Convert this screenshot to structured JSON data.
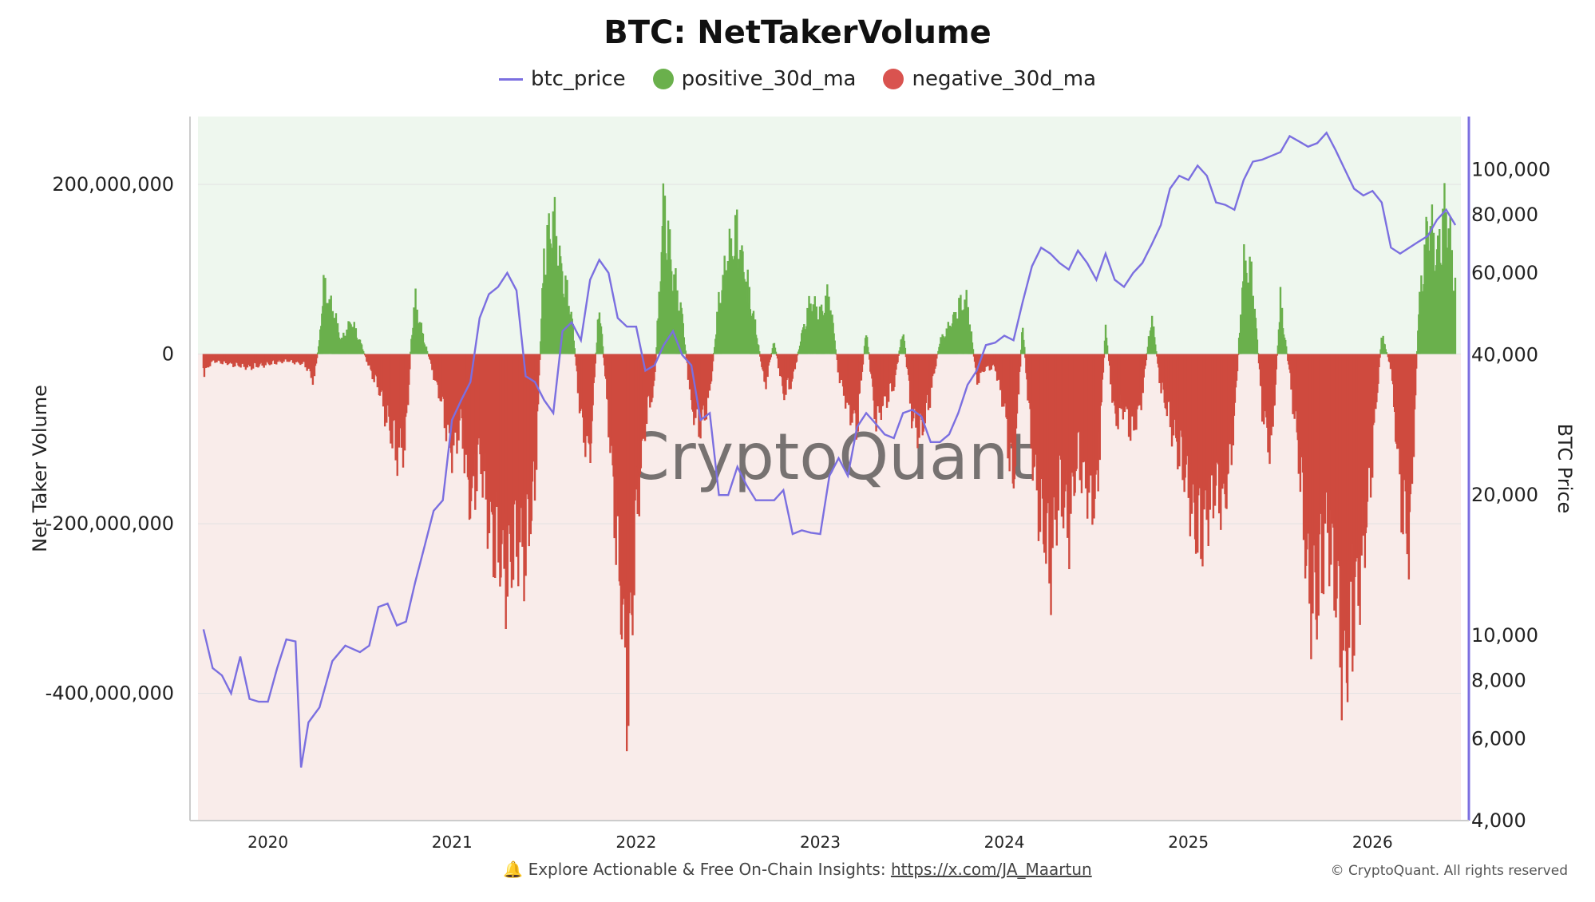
{
  "chart_data": {
    "type": "bar+line",
    "title": "BTC: NetTakerVolume",
    "legend": [
      {
        "name": "btc_price",
        "kind": "line",
        "color": "#7b6fe0"
      },
      {
        "name": "positive_30d_ma",
        "kind": "dot",
        "color": "#6ab04c"
      },
      {
        "name": "negative_30d_ma",
        "kind": "dot",
        "color": "#d9534f"
      }
    ],
    "legend_position": "top-center",
    "ylabel_left": "Net Taker Volume",
    "ylabel_right": "BTC Price",
    "y_left_ticks": [
      "200,000,000",
      "0",
      "-200,000,000",
      "-400,000,000"
    ],
    "y_left_tick_values": [
      200000000,
      0,
      -200000000,
      -400000000
    ],
    "y_left_range": [
      -550000000,
      280000000
    ],
    "y_right_ticks": [
      "100,000",
      "80,000",
      "60,000",
      "40,000",
      "20,000",
      "10,000",
      "8,000",
      "6,000",
      "4,000"
    ],
    "y_right_tick_values": [
      100000,
      80000,
      60000,
      40000,
      20000,
      10000,
      8000,
      6000,
      4000
    ],
    "y_right_scale": "log",
    "y_right_range": [
      4000,
      130000
    ],
    "x_ticks": [
      "2020",
      "2021",
      "2022",
      "2023",
      "2024",
      "2025",
      "2026"
    ],
    "x_tick_values": [
      2020,
      2021,
      2022,
      2023,
      2024,
      2025,
      2026
    ],
    "x_range": [
      2019.62,
      2026.48
    ],
    "watermark": "CryptoQuant",
    "net_taker_volume_30d_ma": [
      [
        2019.65,
        -30000000
      ],
      [
        2019.7,
        -10000000
      ],
      [
        2019.8,
        -15000000
      ],
      [
        2019.9,
        -20000000
      ],
      [
        2020.0,
        -15000000
      ],
      [
        2020.1,
        -10000000
      ],
      [
        2020.2,
        -15000000
      ],
      [
        2020.25,
        -40000000
      ],
      [
        2020.28,
        20000000
      ],
      [
        2020.3,
        100000000
      ],
      [
        2020.35,
        70000000
      ],
      [
        2020.4,
        20000000
      ],
      [
        2020.45,
        50000000
      ],
      [
        2020.5,
        20000000
      ],
      [
        2020.55,
        -20000000
      ],
      [
        2020.6,
        -50000000
      ],
      [
        2020.65,
        -100000000
      ],
      [
        2020.7,
        -150000000
      ],
      [
        2020.75,
        -130000000
      ],
      [
        2020.78,
        30000000
      ],
      [
        2020.8,
        80000000
      ],
      [
        2020.85,
        20000000
      ],
      [
        2020.9,
        -30000000
      ],
      [
        2020.95,
        -80000000
      ],
      [
        2021.0,
        -150000000
      ],
      [
        2021.05,
        -100000000
      ],
      [
        2021.1,
        -230000000
      ],
      [
        2021.15,
        -150000000
      ],
      [
        2021.2,
        -250000000
      ],
      [
        2021.25,
        -300000000
      ],
      [
        2021.3,
        -330000000
      ],
      [
        2021.35,
        -280000000
      ],
      [
        2021.4,
        -300000000
      ],
      [
        2021.45,
        -200000000
      ],
      [
        2021.5,
        150000000
      ],
      [
        2021.55,
        200000000
      ],
      [
        2021.6,
        120000000
      ],
      [
        2021.65,
        60000000
      ],
      [
        2021.7,
        -100000000
      ],
      [
        2021.75,
        -150000000
      ],
      [
        2021.8,
        80000000
      ],
      [
        2021.85,
        -100000000
      ],
      [
        2021.9,
        -300000000
      ],
      [
        2021.93,
        -420000000
      ],
      [
        2021.96,
        -500000000
      ],
      [
        2022.0,
        -250000000
      ],
      [
        2022.05,
        -100000000
      ],
      [
        2022.1,
        -50000000
      ],
      [
        2022.15,
        230000000
      ],
      [
        2022.2,
        120000000
      ],
      [
        2022.25,
        60000000
      ],
      [
        2022.3,
        -80000000
      ],
      [
        2022.35,
        -110000000
      ],
      [
        2022.4,
        -60000000
      ],
      [
        2022.45,
        80000000
      ],
      [
        2022.5,
        150000000
      ],
      [
        2022.55,
        180000000
      ],
      [
        2022.6,
        110000000
      ],
      [
        2022.65,
        40000000
      ],
      [
        2022.7,
        -50000000
      ],
      [
        2022.75,
        20000000
      ],
      [
        2022.8,
        -60000000
      ],
      [
        2022.85,
        -40000000
      ],
      [
        2022.9,
        30000000
      ],
      [
        2022.95,
        80000000
      ],
      [
        2023.0,
        60000000
      ],
      [
        2023.05,
        90000000
      ],
      [
        2023.1,
        -30000000
      ],
      [
        2023.15,
        -80000000
      ],
      [
        2023.2,
        -110000000
      ],
      [
        2023.25,
        40000000
      ],
      [
        2023.3,
        -100000000
      ],
      [
        2023.35,
        -70000000
      ],
      [
        2023.4,
        -50000000
      ],
      [
        2023.45,
        40000000
      ],
      [
        2023.5,
        -100000000
      ],
      [
        2023.55,
        -120000000
      ],
      [
        2023.6,
        -60000000
      ],
      [
        2023.65,
        20000000
      ],
      [
        2023.7,
        40000000
      ],
      [
        2023.75,
        70000000
      ],
      [
        2023.8,
        80000000
      ],
      [
        2023.85,
        -40000000
      ],
      [
        2023.9,
        -20000000
      ],
      [
        2023.95,
        -20000000
      ],
      [
        2024.0,
        -80000000
      ],
      [
        2024.05,
        -200000000
      ],
      [
        2024.1,
        50000000
      ],
      [
        2024.15,
        -150000000
      ],
      [
        2024.2,
        -250000000
      ],
      [
        2024.25,
        -320000000
      ],
      [
        2024.3,
        -200000000
      ],
      [
        2024.35,
        -260000000
      ],
      [
        2024.4,
        -150000000
      ],
      [
        2024.45,
        -200000000
      ],
      [
        2024.5,
        -230000000
      ],
      [
        2024.55,
        40000000
      ],
      [
        2024.6,
        -100000000
      ],
      [
        2024.65,
        -80000000
      ],
      [
        2024.7,
        -120000000
      ],
      [
        2024.75,
        -60000000
      ],
      [
        2024.8,
        60000000
      ],
      [
        2024.85,
        -50000000
      ],
      [
        2024.9,
        -100000000
      ],
      [
        2024.95,
        -150000000
      ],
      [
        2025.0,
        -200000000
      ],
      [
        2025.05,
        -280000000
      ],
      [
        2025.1,
        -240000000
      ],
      [
        2025.15,
        -200000000
      ],
      [
        2025.2,
        -220000000
      ],
      [
        2025.25,
        -100000000
      ],
      [
        2025.3,
        140000000
      ],
      [
        2025.35,
        110000000
      ],
      [
        2025.4,
        -80000000
      ],
      [
        2025.45,
        -150000000
      ],
      [
        2025.5,
        80000000
      ],
      [
        2025.55,
        -30000000
      ],
      [
        2025.6,
        -150000000
      ],
      [
        2025.65,
        -350000000
      ],
      [
        2025.7,
        -380000000
      ],
      [
        2025.75,
        -250000000
      ],
      [
        2025.8,
        -350000000
      ],
      [
        2025.85,
        -480000000
      ],
      [
        2025.9,
        -380000000
      ],
      [
        2025.95,
        -300000000
      ],
      [
        2026.0,
        -150000000
      ],
      [
        2026.05,
        30000000
      ],
      [
        2026.1,
        -20000000
      ],
      [
        2026.15,
        -200000000
      ],
      [
        2026.2,
        -300000000
      ],
      [
        2026.25,
        60000000
      ],
      [
        2026.3,
        200000000
      ],
      [
        2026.35,
        150000000
      ],
      [
        2026.4,
        220000000
      ],
      [
        2026.45,
        100000000
      ]
    ],
    "btc_price": [
      [
        2019.65,
        10300
      ],
      [
        2019.7,
        8500
      ],
      [
        2019.75,
        8200
      ],
      [
        2019.8,
        7500
      ],
      [
        2019.85,
        9000
      ],
      [
        2019.9,
        7300
      ],
      [
        2019.95,
        7200
      ],
      [
        2020.0,
        7200
      ],
      [
        2020.05,
        8500
      ],
      [
        2020.1,
        9800
      ],
      [
        2020.15,
        9700
      ],
      [
        2020.18,
        5200
      ],
      [
        2020.22,
        6500
      ],
      [
        2020.28,
        7000
      ],
      [
        2020.35,
        8800
      ],
      [
        2020.42,
        9500
      ],
      [
        2020.5,
        9200
      ],
      [
        2020.55,
        9500
      ],
      [
        2020.6,
        11500
      ],
      [
        2020.65,
        11700
      ],
      [
        2020.7,
        10500
      ],
      [
        2020.75,
        10700
      ],
      [
        2020.8,
        13000
      ],
      [
        2020.85,
        15500
      ],
      [
        2020.9,
        18500
      ],
      [
        2020.95,
        19500
      ],
      [
        2021.0,
        29000
      ],
      [
        2021.05,
        32000
      ],
      [
        2021.1,
        35000
      ],
      [
        2021.15,
        48000
      ],
      [
        2021.2,
        54000
      ],
      [
        2021.25,
        56000
      ],
      [
        2021.3,
        60000
      ],
      [
        2021.35,
        55000
      ],
      [
        2021.4,
        36000
      ],
      [
        2021.45,
        35000
      ],
      [
        2021.5,
        32000
      ],
      [
        2021.55,
        30000
      ],
      [
        2021.6,
        45000
      ],
      [
        2021.65,
        47000
      ],
      [
        2021.7,
        43000
      ],
      [
        2021.75,
        58000
      ],
      [
        2021.8,
        64000
      ],
      [
        2021.85,
        60000
      ],
      [
        2021.9,
        48000
      ],
      [
        2021.95,
        46000
      ],
      [
        2022.0,
        46000
      ],
      [
        2022.05,
        37000
      ],
      [
        2022.1,
        38000
      ],
      [
        2022.15,
        42000
      ],
      [
        2022.2,
        45000
      ],
      [
        2022.25,
        40000
      ],
      [
        2022.3,
        38000
      ],
      [
        2022.35,
        29000
      ],
      [
        2022.4,
        30000
      ],
      [
        2022.45,
        20000
      ],
      [
        2022.5,
        20000
      ],
      [
        2022.55,
        23000
      ],
      [
        2022.6,
        21000
      ],
      [
        2022.65,
        19500
      ],
      [
        2022.7,
        19500
      ],
      [
        2022.75,
        19500
      ],
      [
        2022.8,
        20500
      ],
      [
        2022.85,
        16500
      ],
      [
        2022.9,
        16800
      ],
      [
        2022.95,
        16600
      ],
      [
        2023.0,
        16500
      ],
      [
        2023.05,
        22000
      ],
      [
        2023.1,
        24000
      ],
      [
        2023.15,
        22000
      ],
      [
        2023.2,
        28000
      ],
      [
        2023.25,
        30000
      ],
      [
        2023.3,
        28500
      ],
      [
        2023.35,
        27000
      ],
      [
        2023.4,
        26500
      ],
      [
        2023.45,
        30000
      ],
      [
        2023.5,
        30500
      ],
      [
        2023.55,
        29500
      ],
      [
        2023.6,
        26000
      ],
      [
        2023.65,
        26000
      ],
      [
        2023.7,
        27000
      ],
      [
        2023.75,
        30000
      ],
      [
        2023.8,
        34500
      ],
      [
        2023.85,
        37000
      ],
      [
        2023.9,
        42000
      ],
      [
        2023.95,
        42500
      ],
      [
        2024.0,
        44000
      ],
      [
        2024.05,
        43000
      ],
      [
        2024.1,
        52000
      ],
      [
        2024.15,
        62000
      ],
      [
        2024.2,
        68000
      ],
      [
        2024.25,
        66000
      ],
      [
        2024.3,
        63000
      ],
      [
        2024.35,
        61000
      ],
      [
        2024.4,
        67000
      ],
      [
        2024.45,
        63000
      ],
      [
        2024.5,
        58000
      ],
      [
        2024.55,
        66000
      ],
      [
        2024.6,
        58000
      ],
      [
        2024.65,
        56000
      ],
      [
        2024.7,
        60000
      ],
      [
        2024.75,
        63000
      ],
      [
        2024.8,
        69000
      ],
      [
        2024.85,
        76000
      ],
      [
        2024.9,
        91000
      ],
      [
        2024.95,
        97000
      ],
      [
        2025.0,
        95000
      ],
      [
        2025.05,
        102000
      ],
      [
        2025.1,
        97000
      ],
      [
        2025.15,
        85000
      ],
      [
        2025.2,
        84000
      ],
      [
        2025.25,
        82000
      ],
      [
        2025.3,
        95000
      ],
      [
        2025.35,
        104000
      ],
      [
        2025.4,
        105000
      ],
      [
        2025.45,
        107000
      ],
      [
        2025.5,
        109000
      ],
      [
        2025.55,
        118000
      ],
      [
        2025.6,
        115000
      ],
      [
        2025.65,
        112000
      ],
      [
        2025.7,
        114000
      ],
      [
        2025.75,
        120000
      ],
      [
        2025.8,
        110000
      ],
      [
        2025.85,
        100000
      ],
      [
        2025.9,
        91000
      ],
      [
        2025.95,
        88000
      ],
      [
        2026.0,
        90000
      ],
      [
        2026.05,
        85000
      ],
      [
        2026.1,
        68000
      ],
      [
        2026.15,
        66000
      ],
      [
        2026.2,
        68000
      ],
      [
        2026.25,
        70000
      ],
      [
        2026.3,
        72000
      ],
      [
        2026.35,
        78000
      ],
      [
        2026.4,
        82000
      ],
      [
        2026.45,
        76000
      ]
    ]
  },
  "footer": {
    "bell_icon": "bell-icon",
    "text": "Explore Actionable & Free On-Chain Insights: ",
    "link": "https://x.com/JA_Maartun",
    "copyright": "© CryptoQuant. All rights reserved"
  }
}
